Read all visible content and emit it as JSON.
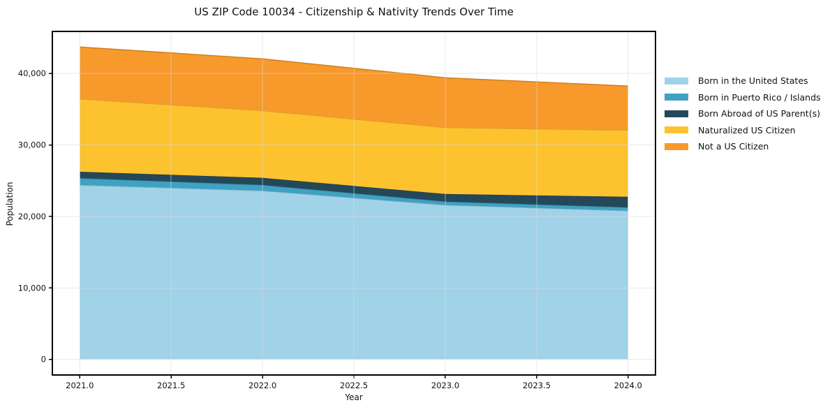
{
  "chart_data": {
    "type": "area",
    "stacked": true,
    "title": "US ZIP Code 10034 - Citizenship & Nativity Trends Over Time",
    "xlabel": "Year",
    "ylabel": "Population",
    "x": [
      2021,
      2022,
      2023,
      2024
    ],
    "series": [
      {
        "name": "Born in the United States",
        "color": "#a0d2e8",
        "values": [
          24400,
          23600,
          21600,
          20800
        ]
      },
      {
        "name": "Born in Puerto Rico / Islands",
        "color": "#3fa2c2",
        "values": [
          950,
          800,
          480,
          470
        ]
      },
      {
        "name": "Born Abroad of US Parent(s)",
        "color": "#24485a",
        "values": [
          900,
          1000,
          1060,
          1480
        ]
      },
      {
        "name": "Naturalized US Citizen",
        "color": "#fdc32f",
        "values": [
          10200,
          9400,
          9300,
          9310
        ]
      },
      {
        "name": "Not a US Citizen",
        "color": "#f8992b",
        "values": [
          7250,
          7250,
          6960,
          6180
        ]
      }
    ],
    "totals": [
      43700,
      42050,
      39400,
      38240
    ],
    "xlim": [
      2020.85,
      2024.15
    ],
    "ylim": [
      -2185,
      45885
    ],
    "xticks": [
      2021.0,
      2021.5,
      2022.0,
      2022.5,
      2023.0,
      2023.5,
      2024.0
    ],
    "xtick_labels": [
      "2021.0",
      "2021.5",
      "2022.0",
      "2022.5",
      "2023.0",
      "2023.5",
      "2024.0"
    ],
    "yticks": [
      0,
      10000,
      20000,
      30000,
      40000
    ],
    "ytick_labels": [
      "0",
      "10,000",
      "20,000",
      "30,000",
      "40,000"
    ],
    "grid": true,
    "grid_color": "#d8d8d8",
    "axis_color": "#000000",
    "legend_position": "right-outside"
  }
}
